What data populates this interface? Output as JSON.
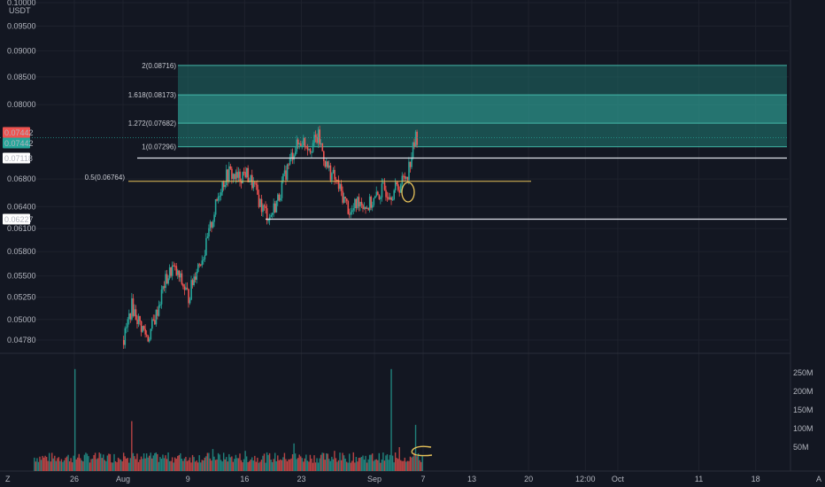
{
  "header": {
    "currency": "USDT"
  },
  "colors": {
    "background": "#131722",
    "grid": "#1e222d",
    "up": "#26a69a",
    "down": "#ef5350",
    "fib_fill_light": "#1f6d68",
    "fib_fill_dark": "#2b8c84",
    "fib_line": "#43b8a8",
    "white_line": "#e0e3eb",
    "yellow_line": "#e8c35a"
  },
  "price_badges": [
    {
      "text": "0.07442",
      "style": "red",
      "value": 0.07442
    },
    {
      "text": "0.07442",
      "style": "teal",
      "value": 0.07442
    },
    {
      "text": "0.07118",
      "style": "white",
      "value": 0.07118
    },
    {
      "text": "0.06227",
      "style": "white",
      "value": 0.06227
    }
  ],
  "fib_labels": [
    {
      "text": "2(0.08716)",
      "value": 0.08716
    },
    {
      "text": "1.618(0.08173)",
      "value": 0.08173
    },
    {
      "text": "1.272(0.07682)",
      "value": 0.07682
    },
    {
      "text": "1(0.07296)",
      "value": 0.07296
    }
  ],
  "yellow_label": {
    "text": "0.5(0.06764)",
    "value": 0.06764
  },
  "volume_axis": [
    "250M",
    "200M",
    "150M",
    "100M",
    "50M"
  ],
  "x_labels": [
    "26",
    "Aug",
    "9",
    "16",
    "23",
    "Sep",
    "7",
    "13",
    "20",
    "12:00",
    "Oct",
    "11",
    "18"
  ],
  "corner_left": "Z",
  "corner_right": "A",
  "chart_data": {
    "type": "candlestick",
    "y_axis": {
      "ticks": [
        0.1,
        0.095,
        0.09,
        0.085,
        0.08,
        0.068,
        0.064,
        0.061,
        0.058,
        0.055,
        0.0525,
        0.05,
        0.0478
      ],
      "tick_labels": [
        "0.10000",
        "0.09500",
        "0.09000",
        "0.08500",
        "0.08000",
        "0.06800",
        "0.06400",
        "0.06100",
        "0.05800",
        "0.05500",
        "0.05250",
        "0.05000",
        "0.04780"
      ],
      "scale": "log",
      "range": [
        0.0465,
        0.1035
      ]
    },
    "x_axis": {
      "start_date": "2021-07-20",
      "ticks": [
        {
          "date": "2021-07-26",
          "label": "26"
        },
        {
          "date": "2021-08-01",
          "label": "Aug"
        },
        {
          "date": "2021-08-09",
          "label": "9"
        },
        {
          "date": "2021-08-16",
          "label": "16"
        },
        {
          "date": "2021-08-23",
          "label": "23"
        },
        {
          "date": "2021-09-01",
          "label": "Sep"
        },
        {
          "date": "2021-09-07",
          "label": "7"
        },
        {
          "date": "2021-09-13",
          "label": "13"
        },
        {
          "date": "2021-09-20",
          "label": "20"
        },
        {
          "date": "2021-09-27",
          "label": "12:00"
        },
        {
          "date": "2021-10-01",
          "label": "Oct"
        },
        {
          "date": "2021-10-11",
          "label": "11"
        },
        {
          "date": "2021-10-18",
          "label": "18"
        }
      ]
    },
    "close_series": [
      [
        "2021-08-01",
        0.0478
      ],
      [
        "2021-08-02",
        0.0515
      ],
      [
        "2021-08-03",
        0.0495
      ],
      [
        "2021-08-04",
        0.048
      ],
      [
        "2021-08-05",
        0.0505
      ],
      [
        "2021-08-06",
        0.054
      ],
      [
        "2021-08-07",
        0.056
      ],
      [
        "2021-08-08",
        0.0545
      ],
      [
        "2021-08-09",
        0.0525
      ],
      [
        "2021-08-10",
        0.056
      ],
      [
        "2021-08-11",
        0.058
      ],
      [
        "2021-08-12",
        0.0625
      ],
      [
        "2021-08-13",
        0.067
      ],
      [
        "2021-08-14",
        0.069
      ],
      [
        "2021-08-15",
        0.068
      ],
      [
        "2021-08-16",
        0.069
      ],
      [
        "2021-08-17",
        0.067
      ],
      [
        "2021-08-18",
        0.064
      ],
      [
        "2021-08-19",
        0.0625
      ],
      [
        "2021-08-20",
        0.065
      ],
      [
        "2021-08-21",
        0.069
      ],
      [
        "2021-08-22",
        0.0725
      ],
      [
        "2021-08-23",
        0.074
      ],
      [
        "2021-08-24",
        0.073
      ],
      [
        "2021-08-25",
        0.0745
      ],
      [
        "2021-08-26",
        0.07
      ],
      [
        "2021-08-27",
        0.068
      ],
      [
        "2021-08-28",
        0.0655
      ],
      [
        "2021-08-29",
        0.063
      ],
      [
        "2021-08-30",
        0.065
      ],
      [
        "2021-08-31",
        0.064
      ],
      [
        "2021-09-01",
        0.065
      ],
      [
        "2021-09-02",
        0.0665
      ],
      [
        "2021-09-03",
        0.066
      ],
      [
        "2021-09-04",
        0.067
      ],
      [
        "2021-09-05",
        0.069
      ],
      [
        "2021-09-06",
        0.0744
      ]
    ],
    "volume": [
      [
        "2021-07-26",
        260000000
      ],
      [
        "2021-08-01",
        35000000
      ],
      [
        "2021-08-02",
        120000000
      ],
      [
        "2021-08-12",
        45000000
      ],
      [
        "2021-08-16",
        40000000
      ],
      [
        "2021-08-22",
        60000000
      ],
      [
        "2021-08-27",
        40000000
      ],
      [
        "2021-09-03",
        260000000
      ],
      [
        "2021-09-04",
        50000000
      ],
      [
        "2021-09-06",
        110000000
      ]
    ]
  }
}
